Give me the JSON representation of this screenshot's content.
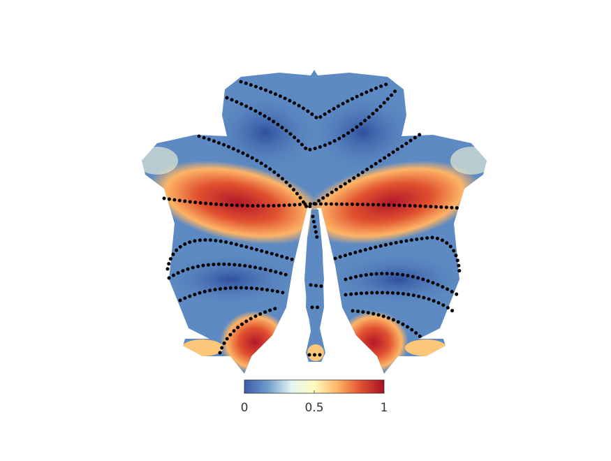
{
  "colorbar": {
    "lim": [
      0,
      1
    ],
    "ticks": [
      0,
      0.5,
      1
    ],
    "colormap": [
      "#3b5ba8",
      "#6f9ccb",
      "#e4f2f3",
      "#fffdc0",
      "#fdb466",
      "#e0512f",
      "#a50f24"
    ]
  }
}
